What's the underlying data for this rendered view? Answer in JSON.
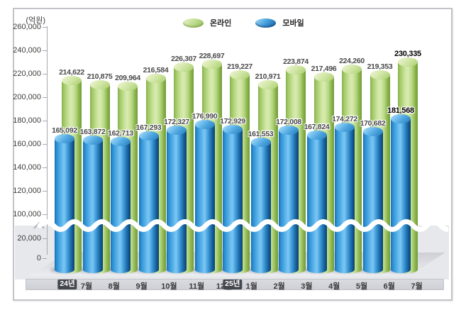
{
  "labels": {
    "unit": "(억원)"
  },
  "legend": [
    {
      "name": "온라인",
      "color": "#a9cd64",
      "marker": "green-cylinder-icon"
    },
    {
      "name": "모바일",
      "color": "#2f8fd0",
      "marker": "blue-cylinder-icon"
    }
  ],
  "y_axis": {
    "upper_ticks": [
      "260,000",
      "240,000",
      "220,000",
      "200,000",
      "180,000",
      "160,000",
      "140,000",
      "120,000",
      "100,000"
    ],
    "lower_ticks": [
      "20,000",
      "0"
    ],
    "has_break": true
  },
  "x_axis": {
    "months": [
      {
        "badge": "24년",
        "label": "7월"
      },
      {
        "badge": null,
        "label": "8월"
      },
      {
        "badge": null,
        "label": "9월"
      },
      {
        "badge": null,
        "label": "10월"
      },
      {
        "badge": null,
        "label": "11월"
      },
      {
        "badge": null,
        "label": "12월"
      },
      {
        "badge": "25년",
        "label": "1월"
      },
      {
        "badge": null,
        "label": "2월"
      },
      {
        "badge": null,
        "label": "3월"
      },
      {
        "badge": null,
        "label": "4월"
      },
      {
        "badge": null,
        "label": "5월"
      },
      {
        "badge": null,
        "label": "6월"
      },
      {
        "badge": null,
        "label": "7월"
      }
    ]
  },
  "chart_data": {
    "type": "bar",
    "title": "",
    "unit": "억원",
    "categories": [
      "24년 7월",
      "8월",
      "9월",
      "10월",
      "11월",
      "12월",
      "25년 1월",
      "2월",
      "3월",
      "4월",
      "5월",
      "6월",
      "7월"
    ],
    "series": [
      {
        "name": "온라인",
        "color": "#a9cd64",
        "values": [
          214622,
          210875,
          209964,
          216584,
          226307,
          228697,
          219227,
          210971,
          223874,
          217496,
          224260,
          219353,
          230335
        ]
      },
      {
        "name": "모바일",
        "color": "#2f8fd0",
        "values": [
          165092,
          163872,
          162713,
          167293,
          172327,
          176990,
          172929,
          161553,
          172008,
          167824,
          174272,
          170682,
          181568
        ]
      }
    ],
    "ylabel": "(억원)",
    "ylim": [
      0,
      260000
    ],
    "y_break": [
      20000,
      100000
    ],
    "grid": false,
    "legend_position": "top",
    "highlight_last_category": true
  }
}
